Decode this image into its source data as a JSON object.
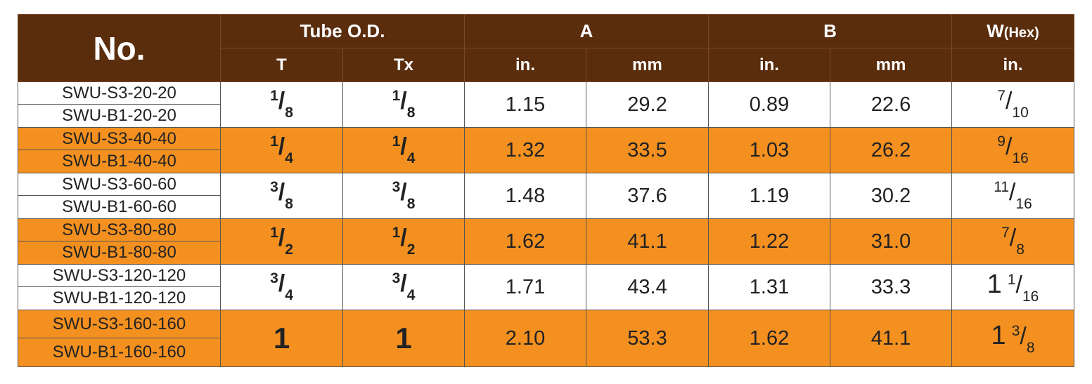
{
  "table": {
    "header": {
      "no": "No.",
      "groups": [
        "Tube O.D.",
        "A",
        "B",
        "W(Hex)"
      ],
      "sub": [
        "T",
        "Tx",
        "in.",
        "mm",
        "in.",
        "mm",
        "in."
      ]
    },
    "rows": [
      {
        "models": [
          "SWU-S3-20-20",
          "SWU-B1-20-20"
        ],
        "cells": [
          "1/8",
          "1/8",
          "1.15",
          "29.2",
          "0.89",
          "22.6",
          "7/10"
        ]
      },
      {
        "models": [
          "SWU-S3-40-40",
          "SWU-B1-40-40"
        ],
        "cells": [
          "1/4",
          "1/4",
          "1.32",
          "33.5",
          "1.03",
          "26.2",
          "9/16"
        ]
      },
      {
        "models": [
          "SWU-S3-60-60",
          "SWU-B1-60-60"
        ],
        "cells": [
          "3/8",
          "3/8",
          "1.48",
          "37.6",
          "1.19",
          "30.2",
          "11/16"
        ]
      },
      {
        "models": [
          "SWU-S3-80-80",
          "SWU-B1-80-80"
        ],
        "cells": [
          "1/2",
          "1/2",
          "1.62",
          "41.1",
          "1.22",
          "31.0",
          "7/8"
        ]
      },
      {
        "models": [
          "SWU-S3-120-120",
          "SWU-B1-120-120"
        ],
        "cells": [
          "3/4",
          "3/4",
          "1.71",
          "43.4",
          "1.31",
          "33.3",
          "1 1/16"
        ]
      },
      {
        "models": [
          "SWU-S3-160-160",
          "SWU-B1-160-160"
        ],
        "cells": [
          "1",
          "1",
          "2.10",
          "53.3",
          "1.62",
          "41.1",
          "1 3/8"
        ]
      }
    ]
  }
}
